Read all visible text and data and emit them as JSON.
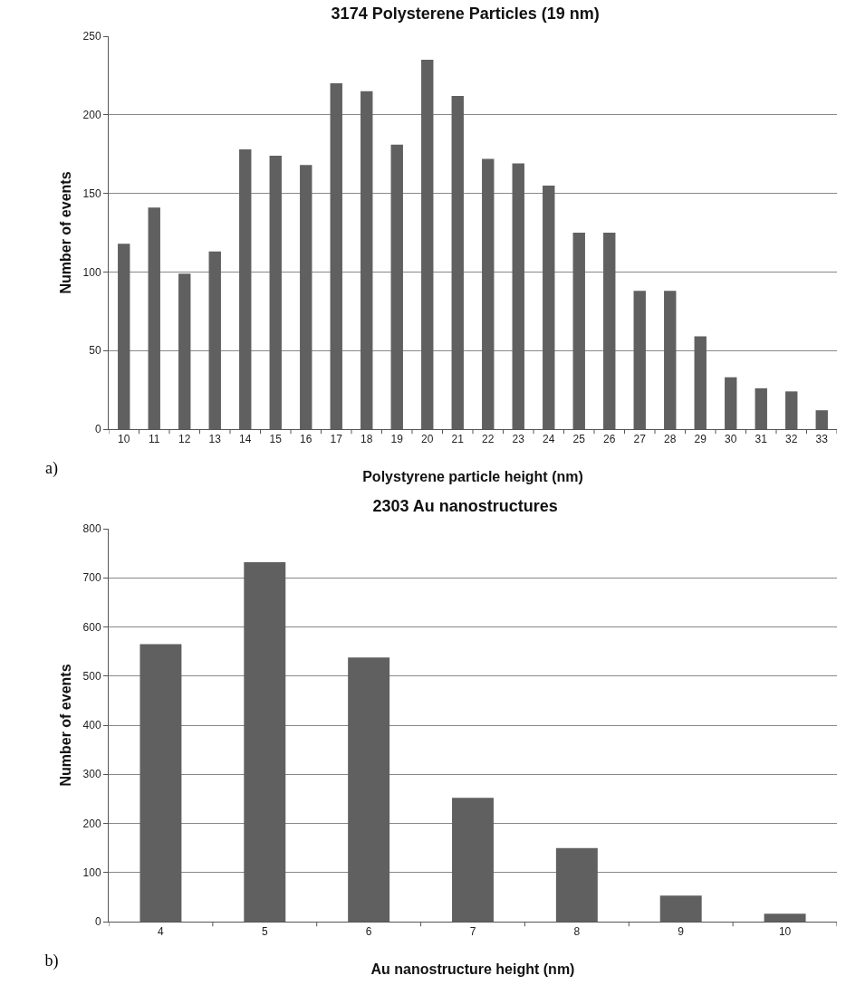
{
  "chart_data": [
    {
      "type": "bar",
      "title": "3174 Polysterene Particles (19 nm)",
      "xlabel": "Polystyrene particle height (nm)",
      "ylabel": "Number of events",
      "annotations": [
        "a)"
      ],
      "categories": [
        "10",
        "11",
        "12",
        "13",
        "14",
        "15",
        "16",
        "17",
        "18",
        "19",
        "20",
        "21",
        "22",
        "23",
        "24",
        "25",
        "26",
        "27",
        "28",
        "29",
        "30",
        "31",
        "32",
        "33"
      ],
      "values": [
        118,
        141,
        99,
        113,
        178,
        174,
        168,
        220,
        215,
        181,
        235,
        212,
        172,
        169,
        155,
        125,
        125,
        88,
        88,
        59,
        33,
        26,
        24,
        12
      ],
      "color": "#606060",
      "ylim": [
        0,
        250
      ],
      "yticks": [
        0,
        50,
        100,
        150,
        200,
        250
      ],
      "grid": "y"
    },
    {
      "type": "bar",
      "title": "2303 Au nanostructures",
      "xlabel": "Au nanostructure height (nm)",
      "ylabel": "Number of events",
      "annotations": [
        "b)"
      ],
      "categories": [
        "4",
        "5",
        "6",
        "7",
        "8",
        "9",
        "10"
      ],
      "values": [
        565,
        732,
        538,
        252,
        150,
        53,
        16
      ],
      "color": "#606060",
      "ylim": [
        0,
        800
      ],
      "yticks": [
        0,
        100,
        200,
        300,
        400,
        500,
        600,
        700,
        800
      ],
      "grid": "y"
    }
  ]
}
